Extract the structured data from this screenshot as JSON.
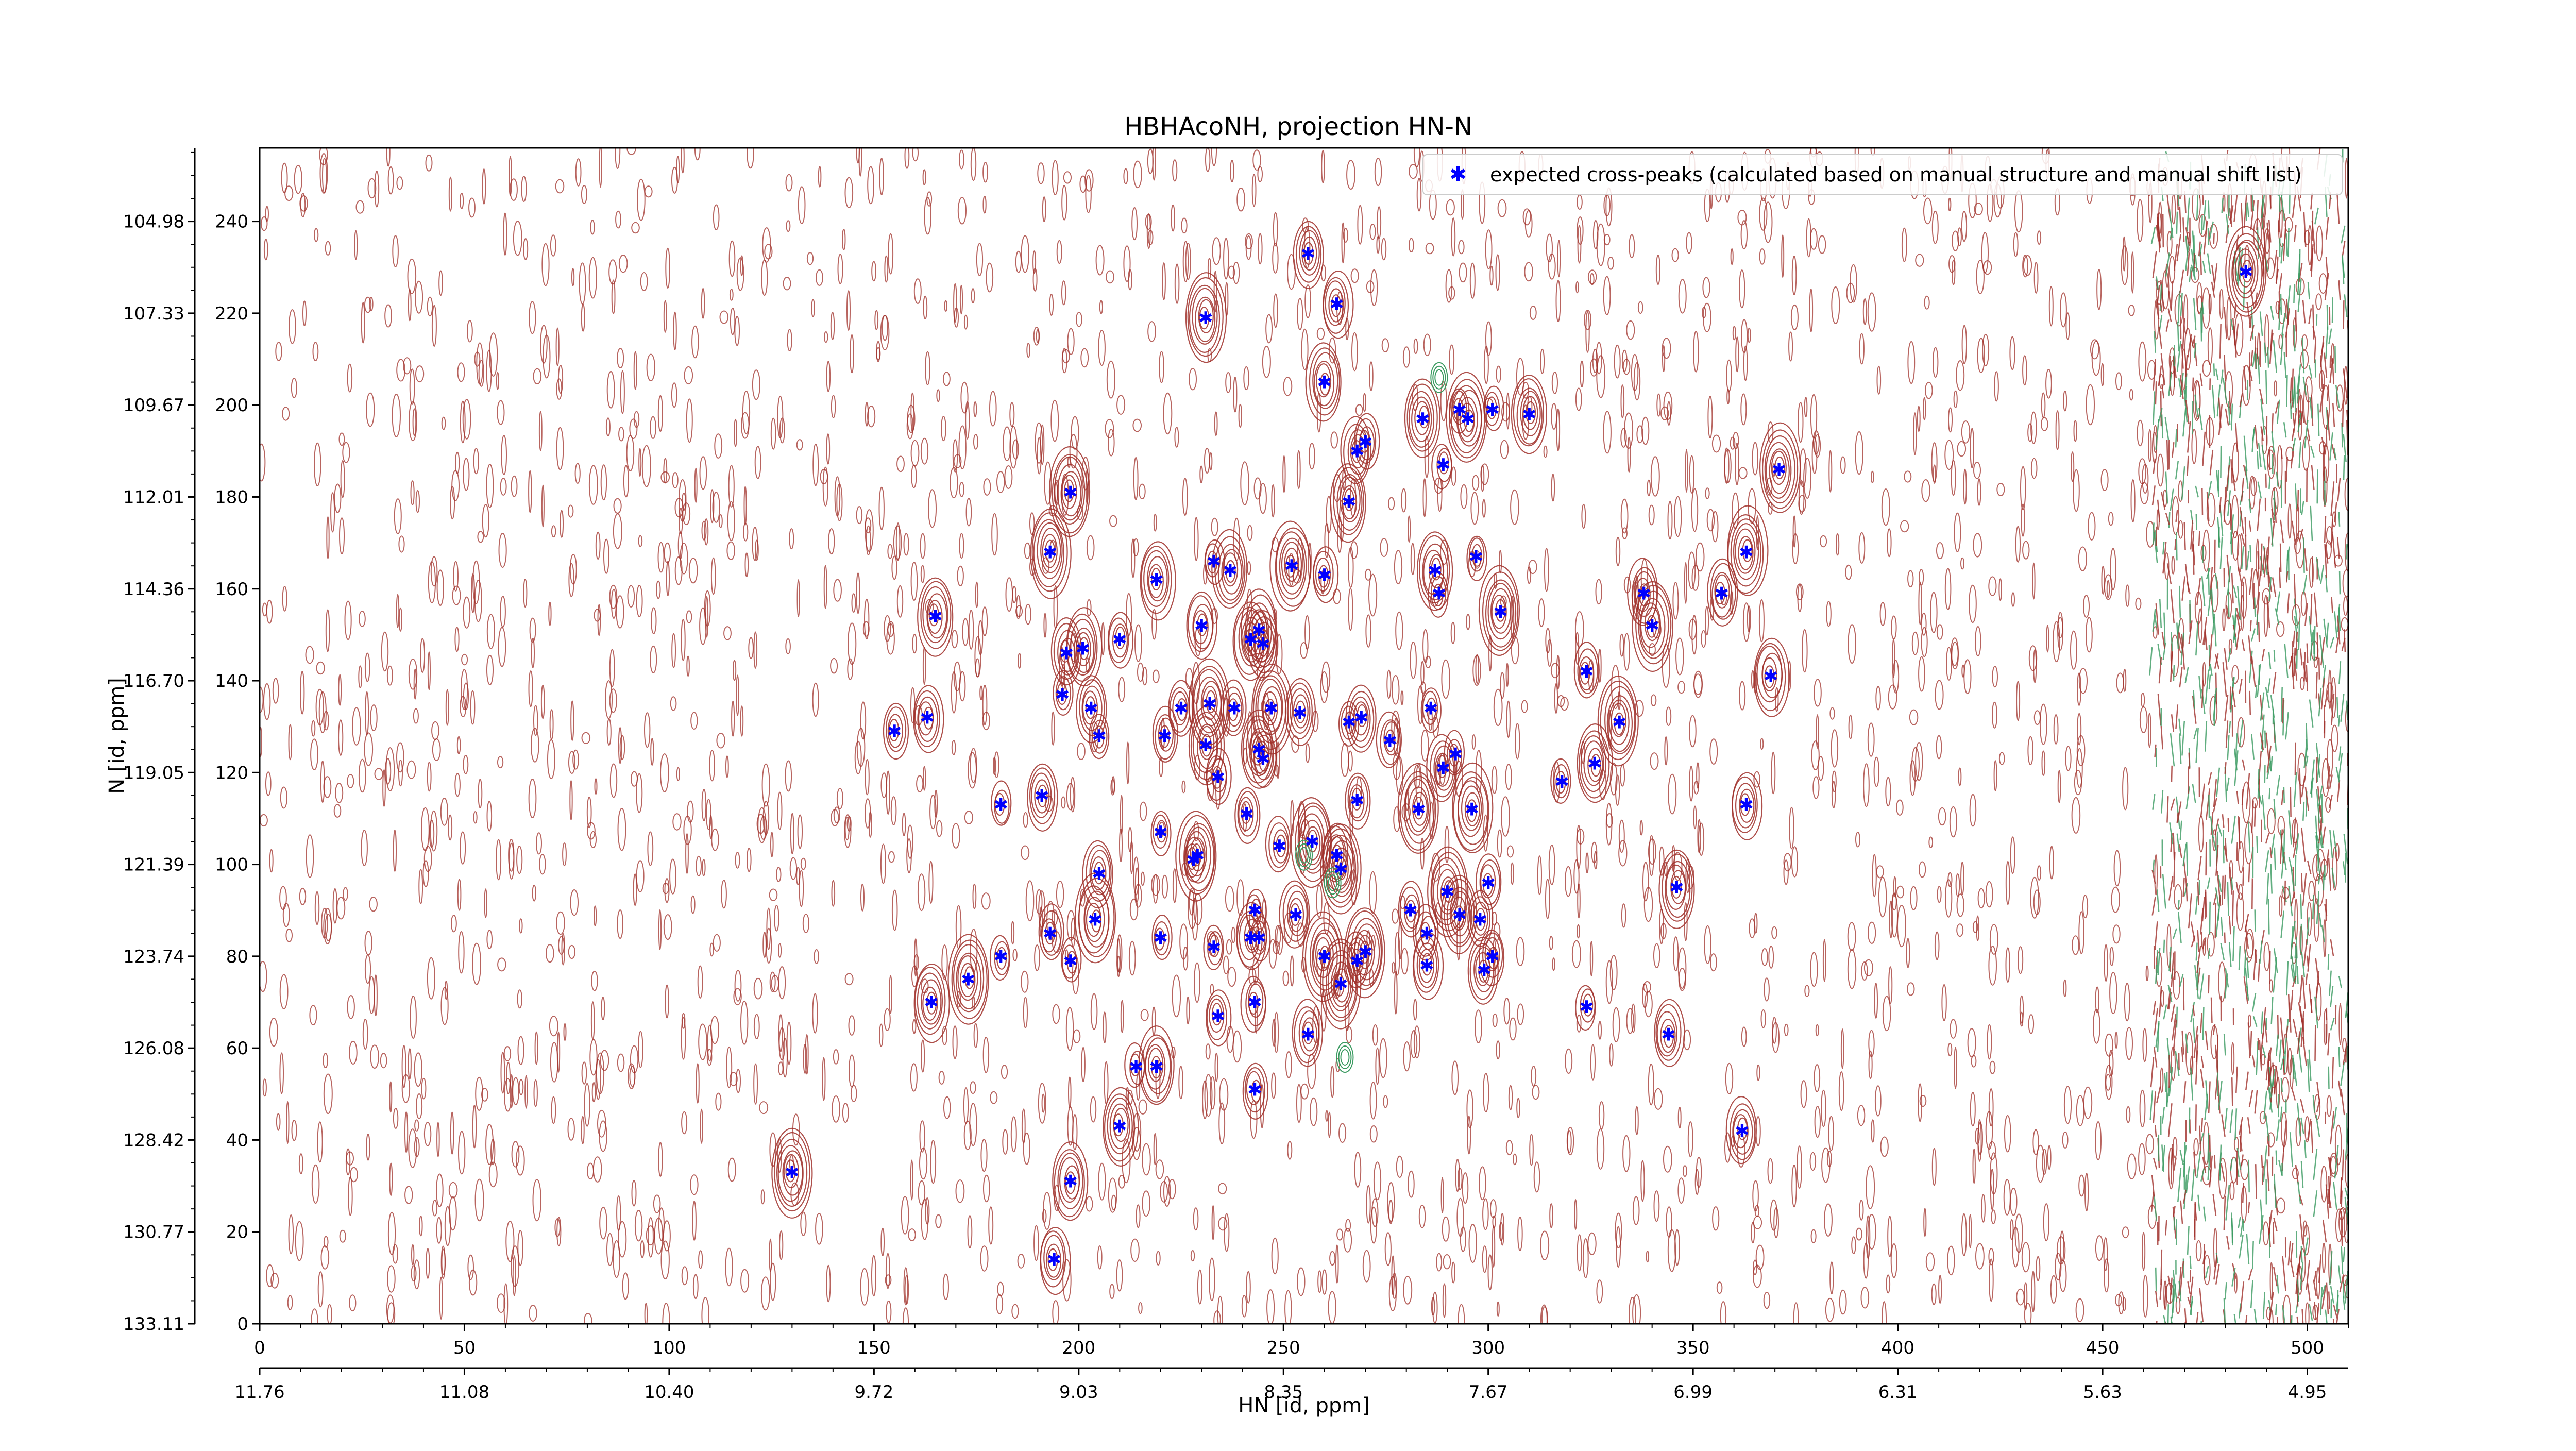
{
  "chart_data": {
    "type": "scatter",
    "title": "HBHAcoNH, projection HN-N",
    "xlabel": "HN [id, ppm]",
    "ylabel": "N [id, ppm]",
    "xlim": [
      0,
      510
    ],
    "ylim": [
      0,
      256
    ],
    "x_ticks": [
      "0",
      "50",
      "100",
      "150",
      "200",
      "250",
      "300",
      "350",
      "400",
      "450",
      "500"
    ],
    "y_ticks": [
      "0",
      "20",
      "40",
      "60",
      "80",
      "100",
      "120",
      "140",
      "160",
      "180",
      "200",
      "220",
      "240"
    ],
    "hn_ppm_ticks": [
      "11.76",
      "11.08",
      "10.40",
      "9.72",
      "9.03",
      "8.35",
      "7.67",
      "6.99",
      "6.31",
      "5.63",
      "4.95"
    ],
    "n_ppm_ticks": [
      "133.11",
      "130.77",
      "128.42",
      "126.08",
      "123.74",
      "121.39",
      "119.05",
      "116.70",
      "114.36",
      "112.01",
      "109.67",
      "107.33",
      "104.98"
    ],
    "legend": {
      "position": "top-right",
      "label": "expected cross-peaks (calculated based on manual structure and manual shift list)"
    },
    "colors": {
      "marker": "#0000ff",
      "positive_contour": "#a0302a",
      "negative_contour": "#3a9a60",
      "axis": "#000000"
    },
    "grid": false,
    "series": [
      {
        "name": "expected cross-peaks (calculated based on manual structure and manual shift list)",
        "points": [
          [
            256,
            233
          ],
          [
            263,
            222
          ],
          [
            231,
            219
          ],
          [
            485,
            229
          ],
          [
            260,
            205
          ],
          [
            284,
            197
          ],
          [
            293,
            199
          ],
          [
            295,
            197
          ],
          [
            301,
            199
          ],
          [
            310,
            198
          ],
          [
            270,
            192
          ],
          [
            268,
            190
          ],
          [
            289,
            187
          ],
          [
            371,
            186
          ],
          [
            198,
            181
          ],
          [
            266,
            179
          ],
          [
            193,
            168
          ],
          [
            233,
            166
          ],
          [
            237,
            164
          ],
          [
            252,
            165
          ],
          [
            260,
            163
          ],
          [
            219,
            162
          ],
          [
            287,
            164
          ],
          [
            288,
            159
          ],
          [
            297,
            167
          ],
          [
            363,
            168
          ],
          [
            165,
            154
          ],
          [
            230,
            152
          ],
          [
            242,
            149
          ],
          [
            244,
            151
          ],
          [
            303,
            155
          ],
          [
            340,
            152
          ],
          [
            338,
            159
          ],
          [
            357,
            159
          ],
          [
            197,
            146
          ],
          [
            201,
            147
          ],
          [
            210,
            149
          ],
          [
            369,
            141
          ],
          [
            324,
            142
          ],
          [
            245,
            148
          ],
          [
            196,
            137
          ],
          [
            203,
            134
          ],
          [
            163,
            132
          ],
          [
            155,
            129
          ],
          [
            225,
            134
          ],
          [
            232,
            135
          ],
          [
            238,
            134
          ],
          [
            247,
            134
          ],
          [
            254,
            133
          ],
          [
            266,
            131
          ],
          [
            269,
            132
          ],
          [
            276,
            127
          ],
          [
            286,
            134
          ],
          [
            289,
            121
          ],
          [
            292,
            124
          ],
          [
            244,
            125
          ],
          [
            245,
            123
          ],
          [
            231,
            126
          ],
          [
            234,
            119
          ],
          [
            205,
            128
          ],
          [
            221,
            128
          ],
          [
            181,
            113
          ],
          [
            191,
            115
          ],
          [
            241,
            111
          ],
          [
            268,
            114
          ],
          [
            283,
            112
          ],
          [
            296,
            112
          ],
          [
            318,
            118
          ],
          [
            363,
            113
          ],
          [
            326,
            122
          ],
          [
            332,
            131
          ],
          [
            220,
            107
          ],
          [
            249,
            104
          ],
          [
            257,
            105
          ],
          [
            263,
            102
          ],
          [
            264,
            99
          ],
          [
            228,
            101
          ],
          [
            229,
            102
          ],
          [
            205,
            98
          ],
          [
            243,
            90
          ],
          [
            253,
            89
          ],
          [
            281,
            90
          ],
          [
            290,
            94
          ],
          [
            293,
            89
          ],
          [
            298,
            88
          ],
          [
            300,
            96
          ],
          [
            204,
            88
          ],
          [
            193,
            85
          ],
          [
            220,
            84
          ],
          [
            233,
            82
          ],
          [
            242,
            84
          ],
          [
            244,
            84
          ],
          [
            260,
            80
          ],
          [
            270,
            81
          ],
          [
            268,
            79
          ],
          [
            285,
            85
          ],
          [
            299,
            77
          ],
          [
            301,
            80
          ],
          [
            346,
            95
          ],
          [
            181,
            80
          ],
          [
            173,
            75
          ],
          [
            164,
            70
          ],
          [
            198,
            79
          ],
          [
            264,
            74
          ],
          [
            285,
            78
          ],
          [
            234,
            67
          ],
          [
            243,
            70
          ],
          [
            256,
            63
          ],
          [
            324,
            69
          ],
          [
            344,
            63
          ],
          [
            214,
            56
          ],
          [
            219,
            56
          ],
          [
            243,
            51
          ],
          [
            210,
            43
          ],
          [
            362,
            42
          ],
          [
            130,
            33
          ],
          [
            198,
            31
          ],
          [
            194,
            14
          ]
        ]
      }
    ]
  }
}
